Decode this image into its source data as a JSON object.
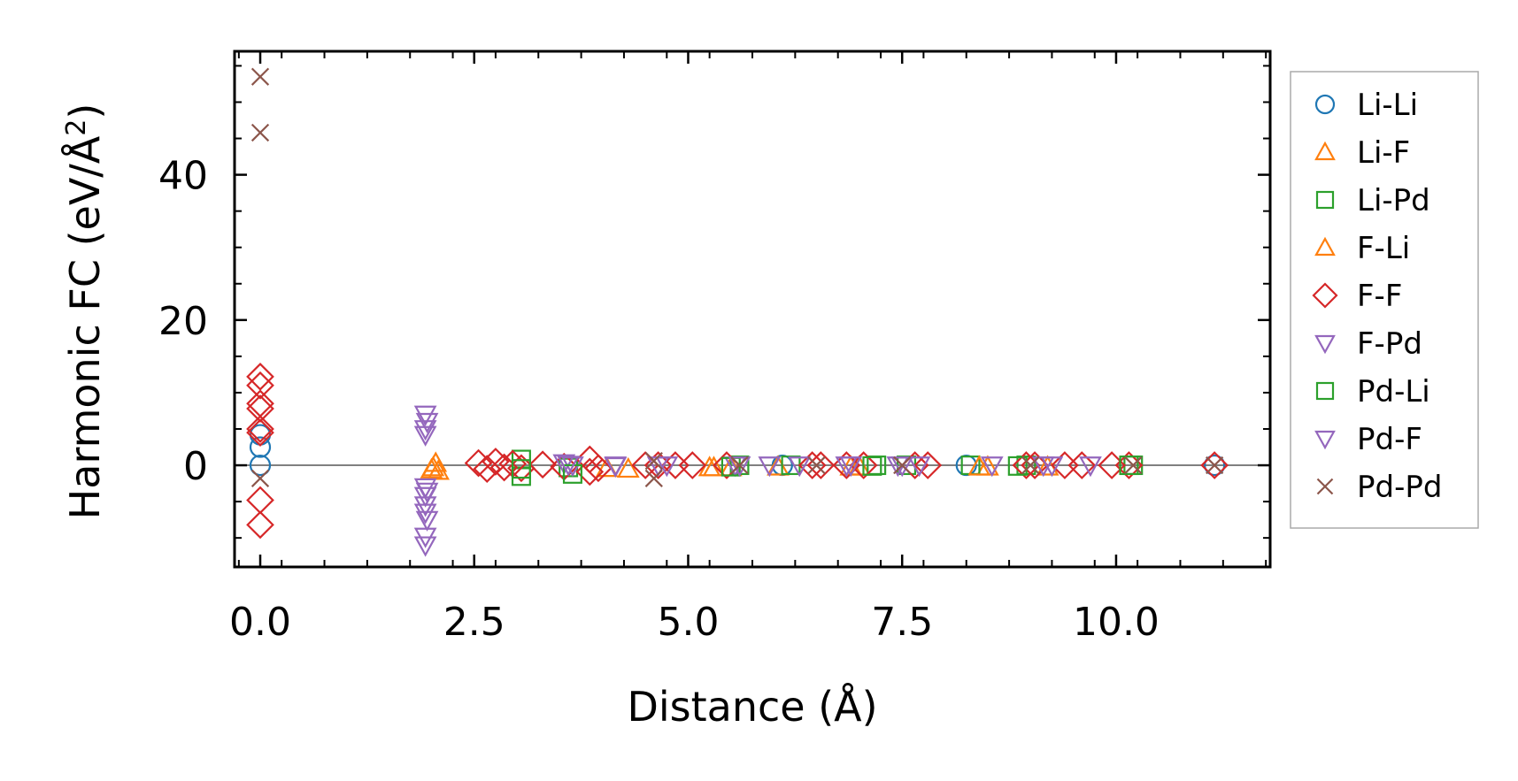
{
  "chart_data": {
    "type": "scatter",
    "xlabel": "Distance (Å)",
    "ylabel": "Harmonic FC (eV/Å",
    "ylabel_sup": "2",
    "ylabel_close": ")",
    "xlim": [
      -0.3,
      11.8
    ],
    "ylim": [
      -14,
      57
    ],
    "x_ticks": [
      0.0,
      2.5,
      5.0,
      7.5,
      10.0
    ],
    "x_tick_labels": [
      "0.0",
      "2.5",
      "5.0",
      "7.5",
      "10.0"
    ],
    "y_ticks": [
      0,
      20,
      40
    ],
    "y_tick_labels": [
      "0",
      "20",
      "40"
    ],
    "zero_line": true,
    "legend_position": "outside-right",
    "series": [
      {
        "name": "Li-Li",
        "marker": "circle",
        "color": "#1f77b4",
        "points": [
          [
            0,
            4.2
          ],
          [
            0,
            2.5
          ],
          [
            0,
            0
          ],
          [
            6.1,
            0
          ],
          [
            8.25,
            0
          ],
          [
            11.15,
            0
          ]
        ]
      },
      {
        "name": "Li-F",
        "marker": "triangle-up",
        "color": "#ff7f0e",
        "points": [
          [
            2.0,
            -0.6
          ],
          [
            2.02,
            -0.3
          ],
          [
            4.3,
            -0.5
          ],
          [
            5.3,
            -0.3
          ],
          [
            5.5,
            -0.3
          ],
          [
            6.05,
            -0.2
          ],
          [
            7.0,
            -0.2
          ],
          [
            8.5,
            -0.2
          ],
          [
            9.2,
            -0.2
          ]
        ]
      },
      {
        "name": "Li-Pd",
        "marker": "square",
        "color": "#2ca02c",
        "points": [
          [
            3.05,
            0.8
          ],
          [
            3.05,
            -1.5
          ],
          [
            3.6,
            -0.3
          ],
          [
            5.6,
            0
          ],
          [
            6.2,
            0
          ],
          [
            7.2,
            0
          ],
          [
            7.55,
            0
          ],
          [
            8.3,
            0
          ],
          [
            8.95,
            0
          ],
          [
            10.2,
            0
          ]
        ]
      },
      {
        "name": "F-Li",
        "marker": "triangle-up",
        "color": "#ff7f0e",
        "points": [
          [
            2.05,
            0.3
          ],
          [
            2.08,
            -0.8
          ],
          [
            4.05,
            -0.4
          ],
          [
            5.25,
            -0.3
          ],
          [
            6.9,
            -0.2
          ],
          [
            8.4,
            -0.2
          ]
        ]
      },
      {
        "name": "F-F",
        "marker": "diamond",
        "color": "#d62728",
        "points": [
          [
            0,
            12.2
          ],
          [
            0,
            11.0
          ],
          [
            0,
            8.5
          ],
          [
            0,
            7.8
          ],
          [
            0,
            5.0
          ],
          [
            0,
            4.5
          ],
          [
            0,
            -4.8
          ],
          [
            0,
            -8.2
          ],
          [
            2.55,
            0.3
          ],
          [
            2.65,
            -0.5
          ],
          [
            2.75,
            0.5
          ],
          [
            2.85,
            -0.3
          ],
          [
            2.95,
            0.2
          ],
          [
            3.05,
            -0.4
          ],
          [
            3.3,
            0.1
          ],
          [
            3.55,
            -0.2
          ],
          [
            3.85,
            0.8
          ],
          [
            3.85,
            -0.9
          ],
          [
            3.95,
            -0.4
          ],
          [
            4.5,
            0
          ],
          [
            4.65,
            0
          ],
          [
            4.85,
            0
          ],
          [
            5.05,
            0
          ],
          [
            5.45,
            0
          ],
          [
            6.45,
            0
          ],
          [
            6.55,
            0
          ],
          [
            6.85,
            0
          ],
          [
            7.05,
            0
          ],
          [
            7.65,
            0
          ],
          [
            7.8,
            0
          ],
          [
            8.95,
            0
          ],
          [
            9.05,
            0
          ],
          [
            9.4,
            0
          ],
          [
            9.6,
            0
          ],
          [
            9.95,
            0
          ],
          [
            10.15,
            0
          ],
          [
            11.15,
            0
          ]
        ]
      },
      {
        "name": "F-Pd",
        "marker": "triangle-down",
        "color": "#9467bd",
        "points": [
          [
            1.93,
            7.0
          ],
          [
            1.93,
            5.0
          ],
          [
            1.93,
            4.2
          ],
          [
            1.93,
            -3.0
          ],
          [
            1.93,
            -4.2
          ],
          [
            1.93,
            -5.5
          ],
          [
            1.93,
            -6.5
          ],
          [
            1.93,
            -9.8
          ],
          [
            1.93,
            -11.0
          ],
          [
            3.55,
            0.3
          ],
          [
            3.65,
            0
          ],
          [
            4.15,
            0
          ],
          [
            4.65,
            0
          ],
          [
            4.75,
            0
          ],
          [
            5.55,
            0
          ],
          [
            5.95,
            0
          ],
          [
            6.3,
            0
          ],
          [
            6.85,
            0
          ],
          [
            7.45,
            0
          ],
          [
            7.7,
            0
          ],
          [
            8.55,
            0
          ],
          [
            9.15,
            0
          ],
          [
            9.7,
            0
          ]
        ]
      },
      {
        "name": "Pd-Li",
        "marker": "square",
        "color": "#2ca02c",
        "points": [
          [
            3.05,
            -0.5
          ],
          [
            3.65,
            -1.2
          ],
          [
            5.5,
            -0.2
          ],
          [
            7.15,
            -0.1
          ],
          [
            8.85,
            -0.1
          ],
          [
            10.15,
            0
          ]
        ]
      },
      {
        "name": "Pd-F",
        "marker": "triangle-down",
        "color": "#9467bd",
        "points": [
          [
            1.95,
            6.0
          ],
          [
            1.95,
            -3.6
          ],
          [
            1.95,
            -7.5
          ],
          [
            3.6,
            0.1
          ],
          [
            4.15,
            -0.1
          ],
          [
            5.6,
            0
          ],
          [
            6.9,
            0
          ],
          [
            7.5,
            0
          ],
          [
            9.25,
            0
          ]
        ]
      },
      {
        "name": "Pd-Pd",
        "marker": "x",
        "color": "#8c564b",
        "points": [
          [
            0,
            53.5
          ],
          [
            0,
            45.8
          ],
          [
            0,
            -1.8
          ],
          [
            4.6,
            0.6
          ],
          [
            4.6,
            -1.8
          ],
          [
            5.6,
            0
          ],
          [
            6.5,
            0
          ],
          [
            7.5,
            0
          ],
          [
            9.0,
            0
          ],
          [
            10.2,
            0
          ],
          [
            11.15,
            0
          ]
        ]
      }
    ]
  }
}
